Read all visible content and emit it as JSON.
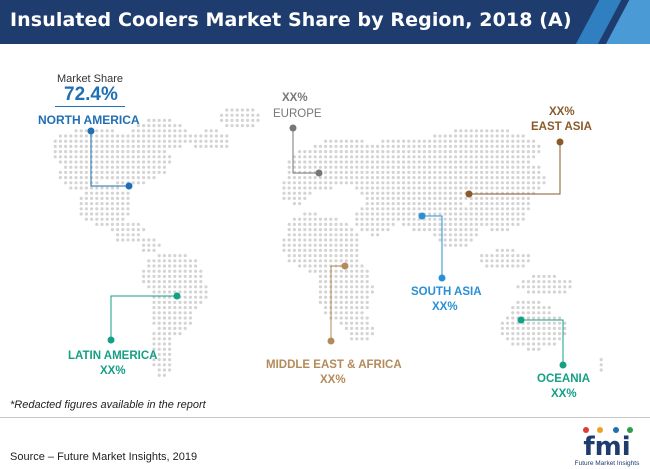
{
  "header": {
    "title": "Insulated Coolers Market Share by Region, 2018 (A)"
  },
  "market_share": {
    "label": "Market Share",
    "value": "72.4%"
  },
  "regions": {
    "north_america": {
      "name": "NORTH AMERICA",
      "color": "#1f6fb5"
    },
    "europe": {
      "value": "XX%",
      "name": "EUROPE",
      "color": "#777777"
    },
    "east_asia": {
      "value": "XX%",
      "name": "EAST ASIA",
      "color": "#8b5a2b"
    },
    "south_asia": {
      "name": "SOUTH ASIA",
      "value": "XX%",
      "color": "#2a8fd6"
    },
    "latin_america": {
      "name": "LATIN AMERICA",
      "value": "XX%",
      "color": "#14a085"
    },
    "middle_east_africa": {
      "name": "MIDDLE EAST & AFRICA",
      "value": "XX%",
      "color": "#b38a5a"
    },
    "oceania": {
      "name": "OCEANIA",
      "value": "XX%",
      "color": "#14a085"
    }
  },
  "footnote": "*Redacted figures available in the report",
  "source": "Source – Future Market Insights, 2019",
  "logo": {
    "text": "fmi",
    "tagline": "Future Market Insights"
  }
}
